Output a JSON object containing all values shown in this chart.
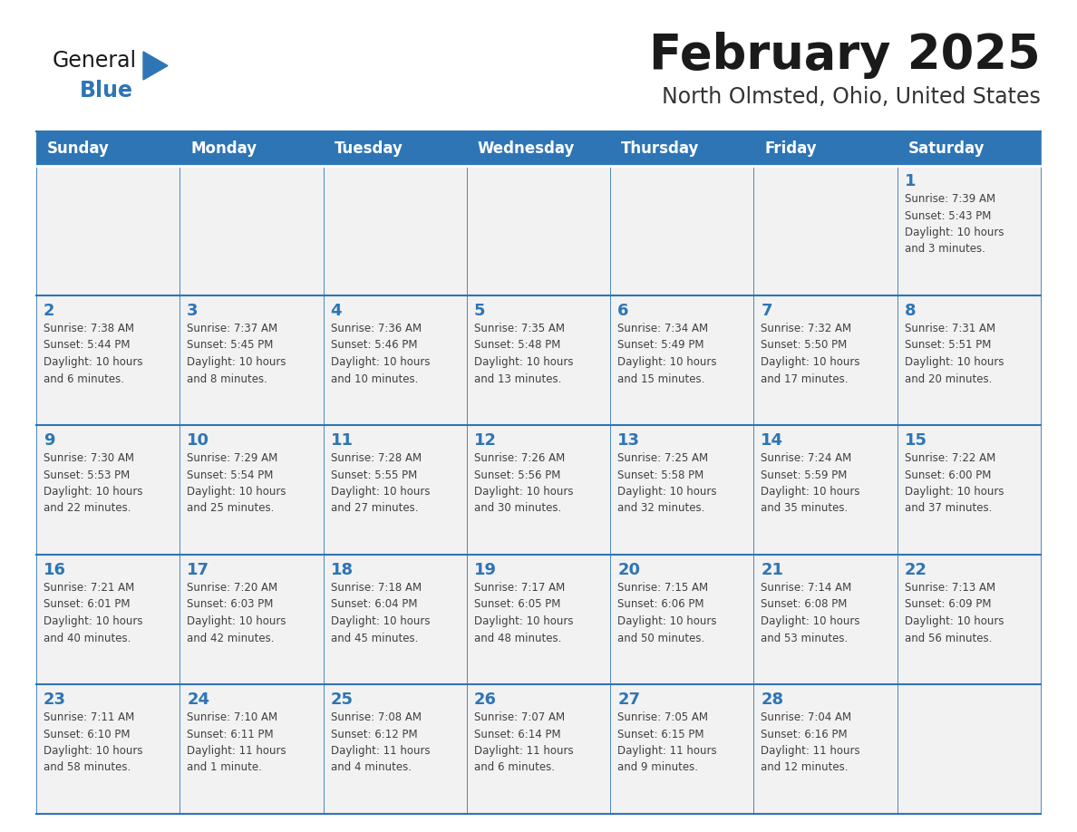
{
  "title": "February 2025",
  "subtitle": "North Olmsted, Ohio, United States",
  "header_color": "#2E75B6",
  "header_text_color": "#FFFFFF",
  "cell_bg_color": "#F2F2F2",
  "border_color": "#2E75B6",
  "text_color": "#404040",
  "day_number_color": "#2E75B6",
  "logo_color_general": "#1a1a1a",
  "logo_color_blue": "#2E75B6",
  "days_of_week": [
    "Sunday",
    "Monday",
    "Tuesday",
    "Wednesday",
    "Thursday",
    "Friday",
    "Saturday"
  ],
  "weeks": [
    [
      {
        "day": null,
        "info": null
      },
      {
        "day": null,
        "info": null
      },
      {
        "day": null,
        "info": null
      },
      {
        "day": null,
        "info": null
      },
      {
        "day": null,
        "info": null
      },
      {
        "day": null,
        "info": null
      },
      {
        "day": 1,
        "info": "Sunrise: 7:39 AM\nSunset: 5:43 PM\nDaylight: 10 hours\nand 3 minutes."
      }
    ],
    [
      {
        "day": 2,
        "info": "Sunrise: 7:38 AM\nSunset: 5:44 PM\nDaylight: 10 hours\nand 6 minutes."
      },
      {
        "day": 3,
        "info": "Sunrise: 7:37 AM\nSunset: 5:45 PM\nDaylight: 10 hours\nand 8 minutes."
      },
      {
        "day": 4,
        "info": "Sunrise: 7:36 AM\nSunset: 5:46 PM\nDaylight: 10 hours\nand 10 minutes."
      },
      {
        "day": 5,
        "info": "Sunrise: 7:35 AM\nSunset: 5:48 PM\nDaylight: 10 hours\nand 13 minutes."
      },
      {
        "day": 6,
        "info": "Sunrise: 7:34 AM\nSunset: 5:49 PM\nDaylight: 10 hours\nand 15 minutes."
      },
      {
        "day": 7,
        "info": "Sunrise: 7:32 AM\nSunset: 5:50 PM\nDaylight: 10 hours\nand 17 minutes."
      },
      {
        "day": 8,
        "info": "Sunrise: 7:31 AM\nSunset: 5:51 PM\nDaylight: 10 hours\nand 20 minutes."
      }
    ],
    [
      {
        "day": 9,
        "info": "Sunrise: 7:30 AM\nSunset: 5:53 PM\nDaylight: 10 hours\nand 22 minutes."
      },
      {
        "day": 10,
        "info": "Sunrise: 7:29 AM\nSunset: 5:54 PM\nDaylight: 10 hours\nand 25 minutes."
      },
      {
        "day": 11,
        "info": "Sunrise: 7:28 AM\nSunset: 5:55 PM\nDaylight: 10 hours\nand 27 minutes."
      },
      {
        "day": 12,
        "info": "Sunrise: 7:26 AM\nSunset: 5:56 PM\nDaylight: 10 hours\nand 30 minutes."
      },
      {
        "day": 13,
        "info": "Sunrise: 7:25 AM\nSunset: 5:58 PM\nDaylight: 10 hours\nand 32 minutes."
      },
      {
        "day": 14,
        "info": "Sunrise: 7:24 AM\nSunset: 5:59 PM\nDaylight: 10 hours\nand 35 minutes."
      },
      {
        "day": 15,
        "info": "Sunrise: 7:22 AM\nSunset: 6:00 PM\nDaylight: 10 hours\nand 37 minutes."
      }
    ],
    [
      {
        "day": 16,
        "info": "Sunrise: 7:21 AM\nSunset: 6:01 PM\nDaylight: 10 hours\nand 40 minutes."
      },
      {
        "day": 17,
        "info": "Sunrise: 7:20 AM\nSunset: 6:03 PM\nDaylight: 10 hours\nand 42 minutes."
      },
      {
        "day": 18,
        "info": "Sunrise: 7:18 AM\nSunset: 6:04 PM\nDaylight: 10 hours\nand 45 minutes."
      },
      {
        "day": 19,
        "info": "Sunrise: 7:17 AM\nSunset: 6:05 PM\nDaylight: 10 hours\nand 48 minutes."
      },
      {
        "day": 20,
        "info": "Sunrise: 7:15 AM\nSunset: 6:06 PM\nDaylight: 10 hours\nand 50 minutes."
      },
      {
        "day": 21,
        "info": "Sunrise: 7:14 AM\nSunset: 6:08 PM\nDaylight: 10 hours\nand 53 minutes."
      },
      {
        "day": 22,
        "info": "Sunrise: 7:13 AM\nSunset: 6:09 PM\nDaylight: 10 hours\nand 56 minutes."
      }
    ],
    [
      {
        "day": 23,
        "info": "Sunrise: 7:11 AM\nSunset: 6:10 PM\nDaylight: 10 hours\nand 58 minutes."
      },
      {
        "day": 24,
        "info": "Sunrise: 7:10 AM\nSunset: 6:11 PM\nDaylight: 11 hours\nand 1 minute."
      },
      {
        "day": 25,
        "info": "Sunrise: 7:08 AM\nSunset: 6:12 PM\nDaylight: 11 hours\nand 4 minutes."
      },
      {
        "day": 26,
        "info": "Sunrise: 7:07 AM\nSunset: 6:14 PM\nDaylight: 11 hours\nand 6 minutes."
      },
      {
        "day": 27,
        "info": "Sunrise: 7:05 AM\nSunset: 6:15 PM\nDaylight: 11 hours\nand 9 minutes."
      },
      {
        "day": 28,
        "info": "Sunrise: 7:04 AM\nSunset: 6:16 PM\nDaylight: 11 hours\nand 12 minutes."
      },
      {
        "day": null,
        "info": null
      }
    ]
  ]
}
